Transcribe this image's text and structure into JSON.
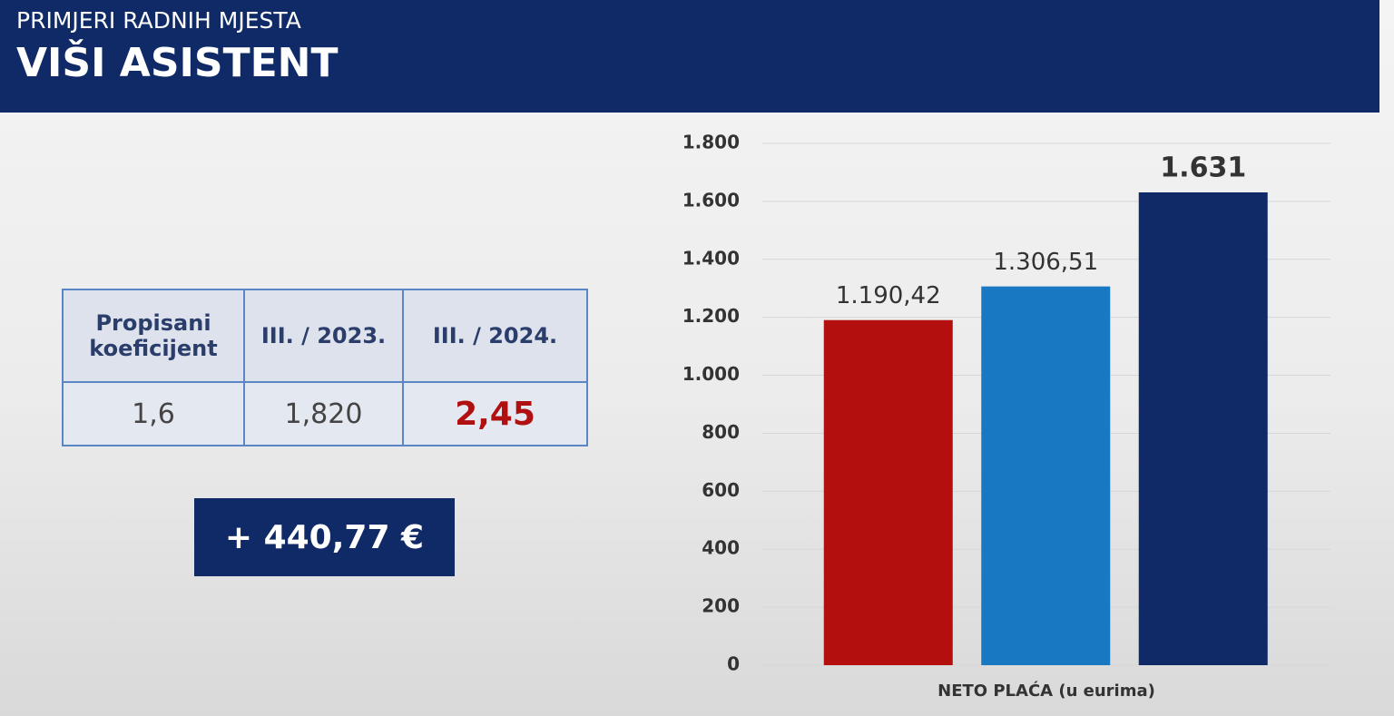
{
  "header": {
    "kicker": "PRIMJERI RADNIH MJESTA",
    "title": "VIŠI ASISTENT"
  },
  "table": {
    "header": [
      "Propisani koeficijent",
      "III. / 2023.",
      "III. / 2024."
    ],
    "rows": [
      [
        "1,6",
        "1,820",
        "2,45"
      ]
    ]
  },
  "difference": "+ 440,77 €",
  "chart_data": {
    "type": "bar",
    "x_label": "NETO PLAĆA (u eurima)",
    "categories": [
      null,
      null,
      null
    ],
    "values": [
      1190.42,
      1306.51,
      1631
    ],
    "value_labels": [
      "1.190,42",
      "1.306,51",
      "1.631"
    ],
    "colors": [
      "#b30f0f",
      "#1878c2",
      "#0f2a66"
    ],
    "value_label_colors": [
      "#333333",
      "#333333",
      "#b01010"
    ],
    "ylim": [
      0,
      1800
    ],
    "yticks": [
      0,
      200,
      400,
      600,
      800,
      {
        "value": 1000,
        "label": "1.000"
      },
      {
        "value": 1200,
        "label": "1.200"
      },
      {
        "value": 1400,
        "label": "1.400"
      },
      {
        "value": 1600,
        "label": "1.600"
      },
      {
        "value": 1800,
        "label": "1.800"
      }
    ],
    "grid": true
  }
}
